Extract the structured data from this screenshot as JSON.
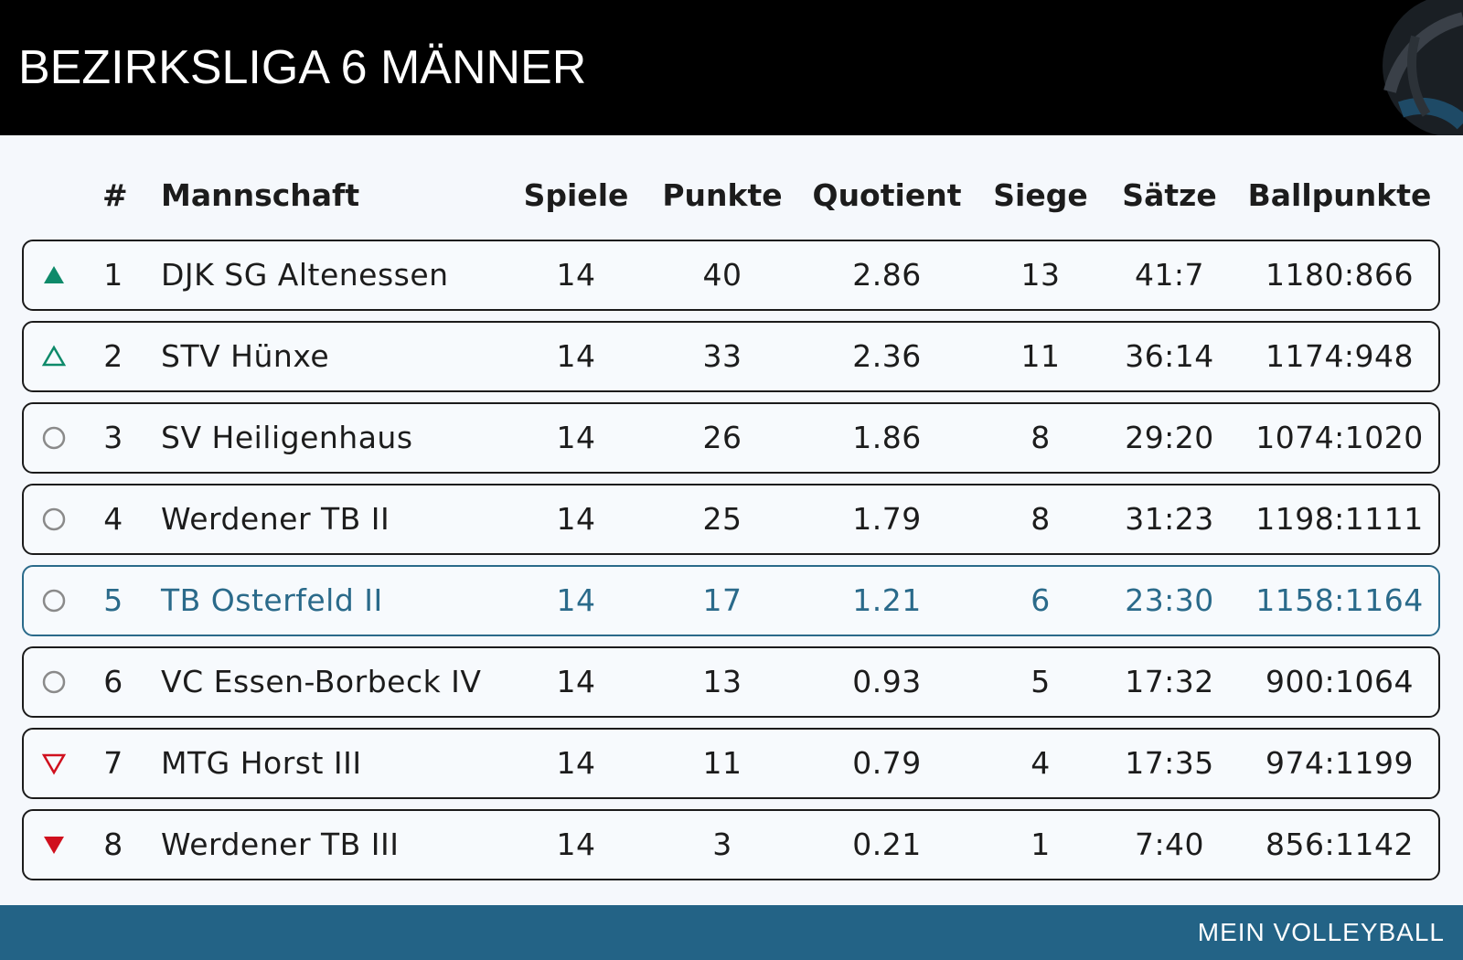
{
  "header": {
    "title": "BEZIRKSLIGA 6 MÄNNER"
  },
  "columns": {
    "rank": "#",
    "team": "Mannschaft",
    "games": "Spiele",
    "points": "Punkte",
    "quotient": "Quotient",
    "wins": "Siege",
    "sets": "Sätze",
    "ballpoints": "Ballpunkte"
  },
  "rows": [
    {
      "trend": "up-filled",
      "rank": "1",
      "team": "DJK SG Altenessen",
      "games": "14",
      "points": "40",
      "quotient": "2.86",
      "wins": "13",
      "sets": "41:7",
      "ballpoints": "1180:866"
    },
    {
      "trend": "up-outline",
      "rank": "2",
      "team": "STV Hünxe",
      "games": "14",
      "points": "33",
      "quotient": "2.36",
      "wins": "11",
      "sets": "36:14",
      "ballpoints": "1174:948"
    },
    {
      "trend": "neutral",
      "rank": "3",
      "team": "SV Heiligenhaus",
      "games": "14",
      "points": "26",
      "quotient": "1.86",
      "wins": "8",
      "sets": "29:20",
      "ballpoints": "1074:1020"
    },
    {
      "trend": "neutral",
      "rank": "4",
      "team": "Werdener TB II",
      "games": "14",
      "points": "25",
      "quotient": "1.79",
      "wins": "8",
      "sets": "31:23",
      "ballpoints": "1198:1111"
    },
    {
      "trend": "neutral",
      "rank": "5",
      "team": "TB Osterfeld II",
      "games": "14",
      "points": "17",
      "quotient": "1.21",
      "wins": "6",
      "sets": "23:30",
      "ballpoints": "1158:1164",
      "highlight": true
    },
    {
      "trend": "neutral",
      "rank": "6",
      "team": "VC Essen-Borbeck IV",
      "games": "14",
      "points": "13",
      "quotient": "0.93",
      "wins": "5",
      "sets": "17:32",
      "ballpoints": "900:1064"
    },
    {
      "trend": "down-outline",
      "rank": "7",
      "team": "MTG Horst III",
      "games": "14",
      "points": "11",
      "quotient": "0.79",
      "wins": "4",
      "sets": "17:35",
      "ballpoints": "974:1199"
    },
    {
      "trend": "down-filled",
      "rank": "8",
      "team": "Werdener TB III",
      "games": "14",
      "points": "3",
      "quotient": "0.21",
      "wins": "1",
      "sets": "7:40",
      "ballpoints": "856:1142"
    }
  ],
  "footer": {
    "brand": "MEIN VOLLEYBALL"
  },
  "colors": {
    "up": "#0e8a6a",
    "down": "#d0101e",
    "neutral": "#8a8a8a",
    "highlight": "#2a6a8a",
    "footer_bg": "#236386"
  }
}
